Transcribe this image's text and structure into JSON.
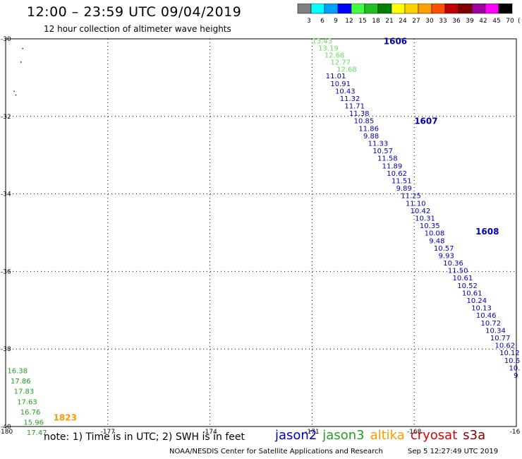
{
  "header": {
    "title": "12:00 – 23:59 UTC 09/04/2019",
    "subtitle": "12 hour collection of altimeter wave heights"
  },
  "colorbar": {
    "unit": "(ft)",
    "ticks": [
      "3",
      "6",
      "9",
      "12",
      "15",
      "18",
      "21",
      "24",
      "27",
      "30",
      "33",
      "36",
      "39",
      "42",
      "45",
      "70"
    ],
    "colors": [
      "#808080",
      "#00ffff",
      "#00a0ff",
      "#0000ff",
      "#40ff40",
      "#20c020",
      "#008000",
      "#ffff00",
      "#ffd000",
      "#ffa000",
      "#ff5000",
      "#c00000",
      "#800000",
      "#a000a0",
      "#ff00ff",
      "#000000"
    ]
  },
  "map": {
    "lon_labels": [
      "-180",
      "-177",
      "-174",
      "-171",
      "-168",
      "-16"
    ],
    "lat_labels": [
      "-30",
      "-32",
      "-34",
      "-36",
      "-38",
      "-40"
    ]
  },
  "tracks": [
    {
      "name": "jason3-track",
      "color": "#60e060",
      "start_lon": -171.0,
      "lat_step": 0.18,
      "start_lat": -30.05,
      "values": [
        "13.43",
        "13.19",
        "12.68",
        "12.77",
        "12.68"
      ]
    },
    {
      "name": "jason2-track",
      "color": "#0000b0",
      "start_lon": -170.6,
      "start_lat": -30.95,
      "lat_step": 0.193,
      "values": [
        "11.01",
        "10.91",
        "10.43",
        "11.32",
        "11.71",
        "11.38",
        "10.85",
        "11.86",
        "9.88",
        "11.33",
        "10.57",
        "11.58",
        "11.89",
        "10.62",
        "11.51",
        "9.89",
        "11.25",
        "11.10",
        "10.42",
        "10.31",
        "10.35",
        "10.08",
        "9.48",
        "10.57",
        "9.93",
        "10.36",
        "11.50",
        "10.61",
        "10.52",
        "10.61",
        "10.24",
        "10.13",
        "10.46",
        "10.72",
        "10.34",
        "10.77",
        "10.62",
        "10.12",
        "10.6",
        "10.",
        "9"
      ]
    },
    {
      "name": "altika-track",
      "color": "#20a020",
      "start_lon": -179.95,
      "start_lat": -38.55,
      "lat_step": 0.2667,
      "values": [
        "16.38",
        "17.86",
        "17.83",
        "17.63",
        "16.76",
        "15.96",
        "17.47"
      ]
    }
  ],
  "time_labels": [
    {
      "text": "1606",
      "color": "#0000b0",
      "lon": -168.9,
      "lat": -30.05
    },
    {
      "text": "1607",
      "color": "#0000b0",
      "lon": -168.0,
      "lat": -32.1
    },
    {
      "text": "1608",
      "color": "#0000b0",
      "lon": -166.2,
      "lat": -34.95
    },
    {
      "text": "1823",
      "color": "#ff9900",
      "lon": -178.6,
      "lat": -39.75
    }
  ],
  "note": "note: 1) Time is in UTC; 2) SWH is in feet",
  "legend": [
    {
      "label": "jason2",
      "color": "#0000c0"
    },
    {
      "label": "jason3",
      "color": "#20a020"
    },
    {
      "label": "altika",
      "color": "#ff9900"
    },
    {
      "label": "cryosat",
      "color": "#e00000"
    },
    {
      "label": "s3a",
      "color": "#800000"
    }
  ],
  "credit": "NOAA/NESDIS Center for Satellite Applications and Research",
  "credit_time": "Sep 5 12:27:49 UTC 2019"
}
